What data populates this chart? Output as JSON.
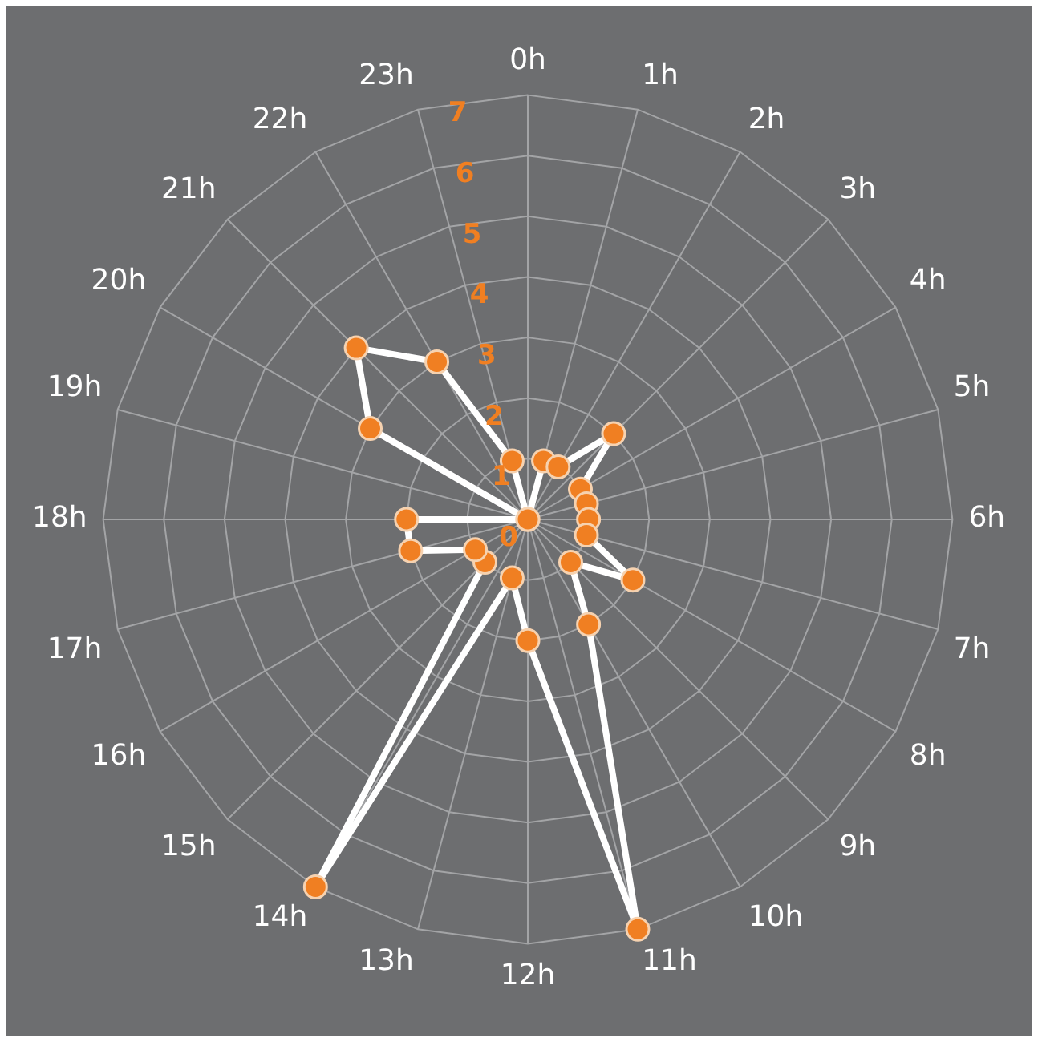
{
  "chart_data": {
    "type": "radar",
    "categories": [
      "0h",
      "1h",
      "2h",
      "3h",
      "4h",
      "5h",
      "6h",
      "7h",
      "8h",
      "9h",
      "10h",
      "11h",
      "12h",
      "13h",
      "14h",
      "15h",
      "16h",
      "17h",
      "18h",
      "19h",
      "20h",
      "21h",
      "22h",
      "23h"
    ],
    "series": [
      {
        "color": "#ffffff",
        "values": [
          0,
          1,
          1,
          2,
          1,
          1,
          1,
          1,
          2,
          1,
          2,
          7,
          2,
          1,
          7,
          1,
          1,
          2,
          2,
          0,
          3,
          4,
          3,
          1
        ]
      }
    ],
    "ylim": [
      0,
      7
    ],
    "yticks": [
      0,
      1,
      2,
      3,
      4,
      5,
      6,
      7
    ],
    "grid": true,
    "legend": false,
    "marker": "circle"
  }
}
